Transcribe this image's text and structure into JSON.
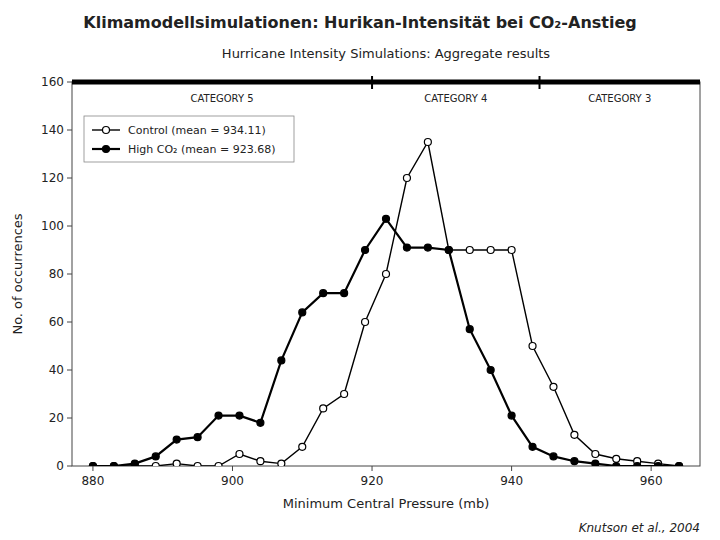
{
  "chart_data": {
    "type": "line",
    "title": "Klimamodellsimulationen: Hurikan-Intensität bei CO₂-Anstieg",
    "subtitle": "Hurricane Intensity Simulations:  Aggregate results",
    "x_label": "Minimum Central Pressure (mb)",
    "y_label": "No. of occurrences",
    "x": [
      880,
      883,
      886,
      889,
      892,
      895,
      898,
      901,
      904,
      907,
      910,
      913,
      916,
      919,
      922,
      925,
      928,
      931,
      934,
      937,
      940,
      943,
      946,
      949,
      952,
      955,
      958,
      961,
      964
    ],
    "series": [
      {
        "name": "Control (mean = 934.11)",
        "color": "#000000",
        "marker": "open-circle",
        "line_style": "solid",
        "values": [
          0,
          0,
          0,
          0,
          1,
          0,
          0,
          5,
          2,
          1,
          8,
          24,
          30,
          60,
          80,
          120,
          135,
          90,
          90,
          90,
          90,
          50,
          33,
          13,
          5,
          3,
          2,
          1,
          0
        ]
      },
      {
        "name": "High CO₂ (mean = 923.68)",
        "color": "#000000",
        "marker": "filled-circle",
        "line_style": "solid",
        "values": [
          0,
          0,
          1,
          4,
          11,
          12,
          21,
          21,
          18,
          44,
          64,
          72,
          72,
          90,
          103,
          91,
          91,
          90,
          57,
          40,
          21,
          8,
          4,
          2,
          1,
          0,
          0,
          0,
          0
        ]
      }
    ],
    "xlim": [
      877,
      967
    ],
    "ylim": [
      0,
      160
    ],
    "xticks": [
      880,
      900,
      920,
      940,
      960
    ],
    "yticks": [
      0,
      20,
      40,
      60,
      80,
      100,
      120,
      140,
      160
    ],
    "category_boundaries": [
      920,
      944
    ],
    "category_labels": [
      "CATEGORY 5",
      "CATEGORY 4",
      "CATEGORY 3"
    ],
    "source": "Knutson et al., 2004",
    "legend": "upper left",
    "grid": false
  }
}
